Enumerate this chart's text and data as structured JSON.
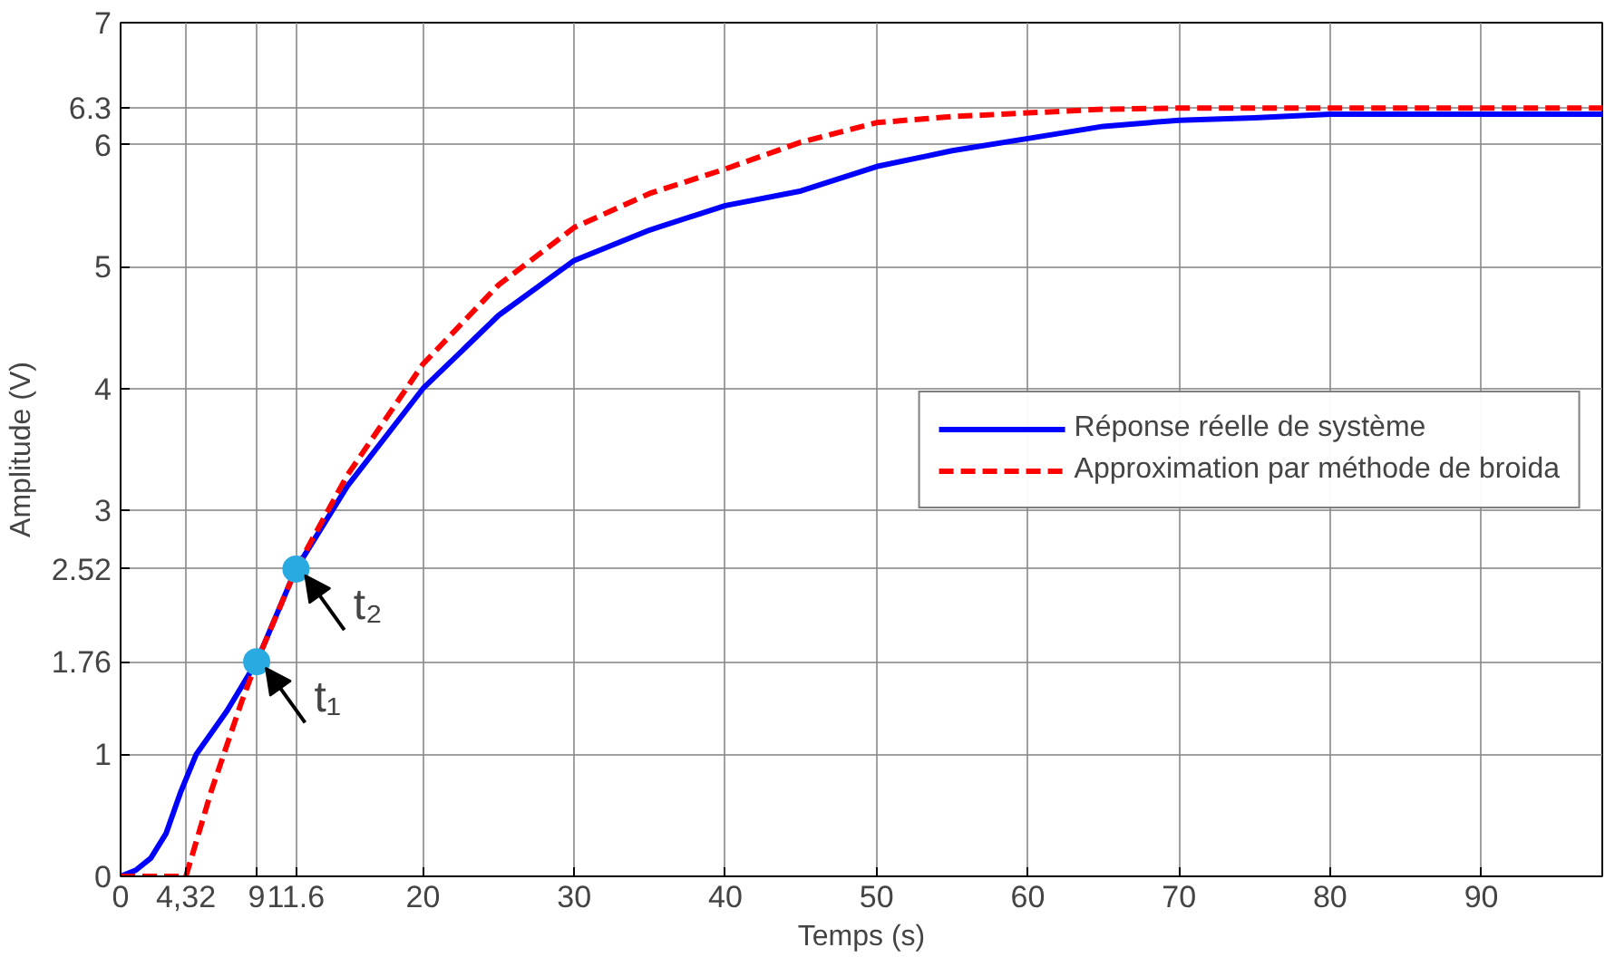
{
  "chart_data": {
    "type": "line",
    "xlabel": "Temps (s)",
    "ylabel": "Amplitude (V)",
    "xlim": [
      0,
      98
    ],
    "ylim": [
      0,
      7
    ],
    "xticks": [
      0,
      {
        "value": 4.32,
        "label": "4,32"
      },
      9,
      11.6,
      20,
      30,
      40,
      50,
      60,
      70,
      80,
      90
    ],
    "yticks": [
      0,
      1,
      1.76,
      2.52,
      3,
      4,
      5,
      6,
      6.3,
      7
    ],
    "grid": true,
    "legend": "right",
    "marker": "none",
    "series": [
      {
        "name": "Réponse réelle de système",
        "color": "#0000ff",
        "line_style": "solid",
        "x": [
          0,
          1,
          2,
          3,
          4,
          5,
          7,
          9,
          11.6,
          15,
          20,
          25,
          30,
          35,
          40,
          45,
          50,
          55,
          60,
          65,
          70,
          75,
          80,
          90,
          98
        ],
        "values": [
          0,
          0.05,
          0.15,
          0.35,
          0.7,
          1.0,
          1.35,
          1.76,
          2.52,
          3.2,
          4.0,
          4.6,
          5.05,
          5.3,
          5.5,
          5.62,
          5.82,
          5.95,
          6.05,
          6.15,
          6.2,
          6.22,
          6.25,
          6.25,
          6.25
        ]
      },
      {
        "name": "Approximation par méthode de broida",
        "color": "#ff0000",
        "line_style": "dashed",
        "x": [
          0,
          4.32,
          6,
          8,
          9,
          10,
          11.6,
          15,
          20,
          25,
          30,
          35,
          40,
          45,
          50,
          55,
          60,
          65,
          70,
          80,
          98
        ],
        "values": [
          0,
          0,
          0.7,
          1.43,
          1.76,
          2.05,
          2.52,
          3.29,
          4.2,
          4.85,
          5.32,
          5.6,
          5.8,
          6.02,
          6.18,
          6.23,
          6.26,
          6.29,
          6.3,
          6.3,
          6.3
        ]
      },
      {
        "type": "scatter",
        "color": "#29abe2",
        "marker": "circle",
        "x": [
          9,
          11.6
        ],
        "values": [
          1.76,
          2.52
        ]
      }
    ],
    "annotations": [
      {
        "text": "t₁",
        "x": 9,
        "y": 1.76
      },
      {
        "text": "t₂",
        "x": 11.6,
        "y": 2.52
      }
    ]
  }
}
